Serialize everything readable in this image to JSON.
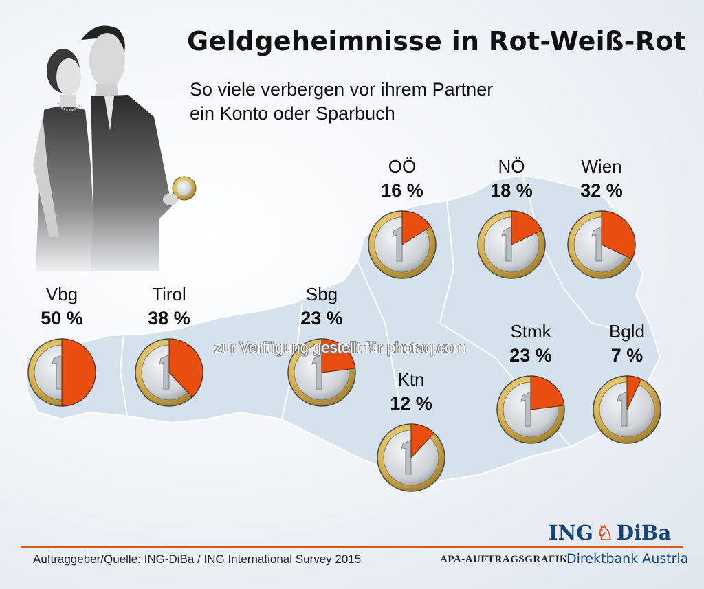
{
  "title": "Geldgeheimnisse in Rot-Weiß-Rot",
  "subtitle_line1": "So viele verbergen vor ihrem Partner",
  "subtitle_line2": "ein Konto oder Sparbuch",
  "chart_data": {
    "type": "pie",
    "title": "Geldgeheimnisse in Rot-Weiß-Rot",
    "subtitle": "So viele verbergen vor ihrem Partner ein Konto oder Sparbuch",
    "categories": [
      "OÖ",
      "NÖ",
      "Wien",
      "Vbg",
      "Tirol",
      "Sbg",
      "Ktn",
      "Stmk",
      "Bgld"
    ],
    "values": [
      16,
      18,
      32,
      50,
      38,
      23,
      12,
      23,
      7
    ],
    "value_labels": [
      "16 %",
      "18 %",
      "32 %",
      "50 %",
      "38 %",
      "23 %",
      "12 %",
      "23 %",
      "7 %"
    ],
    "slice_color": "#e84e0f",
    "coin_colors": {
      "rim": "#d8b454",
      "center": "#d9dde1",
      "outline": "#4a4a4a"
    }
  },
  "watermark": "zur Verfügung gestellt für photaq.com",
  "footer": {
    "source": "Auftraggeber/Quelle: ING-DiBa / ING International Survey 2015",
    "agency": "APA-AUFTRAGSGRAFIK",
    "bank": "Direktbank Austria",
    "brand_left": "ING",
    "brand_right": "DiBa"
  },
  "colors": {
    "accent": "#e8521a",
    "brand": "#14457a",
    "map": "#d5e1ec"
  }
}
